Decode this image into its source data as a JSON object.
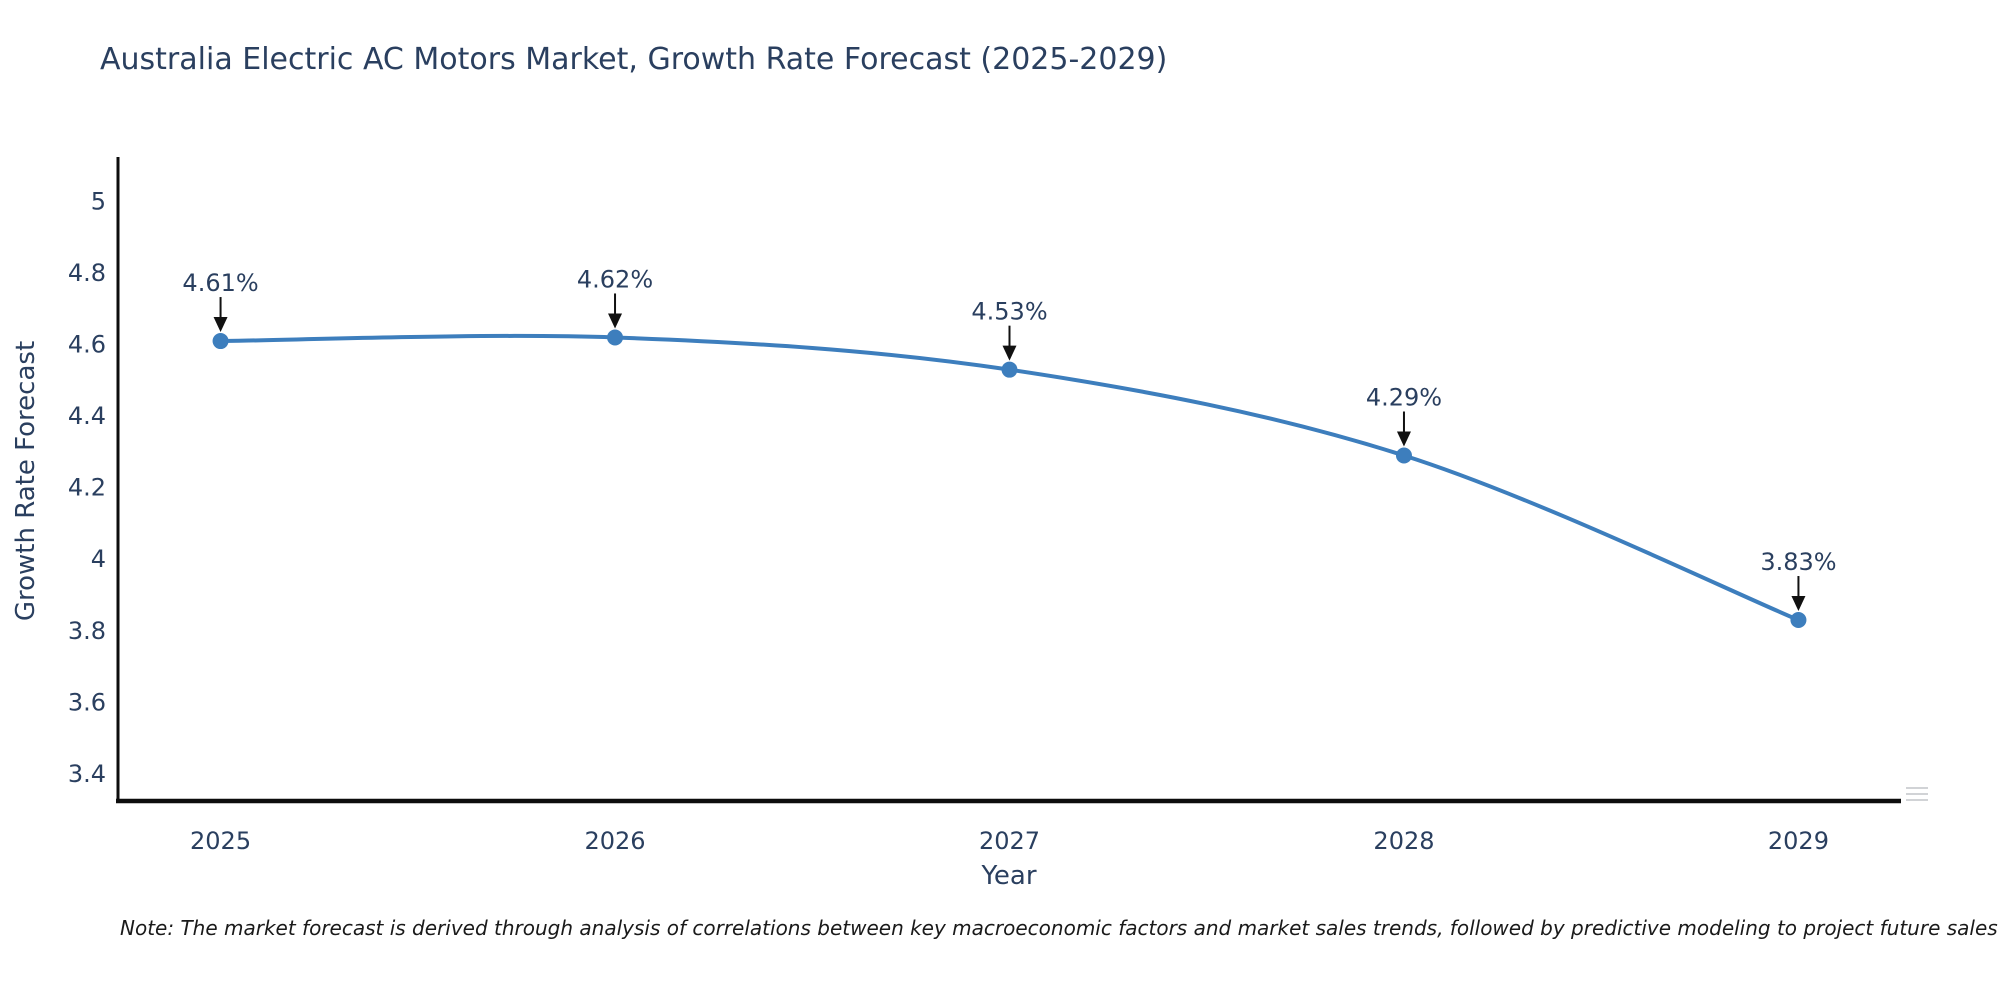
{
  "title": {
    "text": "Australia Electric AC Motors Market, Growth Rate Forecast (2025-2029)"
  },
  "note": {
    "text": "Note: The market forecast is derived through analysis of correlations between key macroeconomic factors and market sales trends, followed by predictive modeling to project future sales"
  },
  "chart_data": {
    "type": "line",
    "title": "Australia Electric AC Motors Market, Growth Rate Forecast (2025-2029)",
    "xlabel": "Year",
    "ylabel": "Growth Rate Forecast",
    "categories": [
      "2025",
      "2026",
      "2027",
      "2028",
      "2029"
    ],
    "x": [
      2025,
      2026,
      2027,
      2028,
      2029
    ],
    "series": [
      {
        "name": "Growth Rate Forecast",
        "values": [
          4.61,
          4.62,
          4.53,
          4.29,
          3.83
        ]
      }
    ],
    "data_labels": [
      "4.61%",
      "4.62%",
      "4.53%",
      "4.29%",
      "3.83%"
    ],
    "ytick_labels": [
      "5",
      "4.8",
      "4.6",
      "4.4",
      "4.2",
      "4",
      "3.8",
      "3.6",
      "3.4"
    ],
    "yticks": [
      5,
      4.8,
      4.6,
      4.4,
      4.2,
      4,
      3.8,
      3.6,
      3.4
    ],
    "xlim": [
      2024.74,
      2029.26
    ],
    "ylim": [
      3.324,
      5.119
    ],
    "grid": false,
    "curve": "spline",
    "legend": "none",
    "colors": {
      "line": "#3d7ebd",
      "marker": "#3d7ebd",
      "axis": "#0d0d0d",
      "text": "#2a3f5f",
      "annotation_arrow": "#111111"
    }
  }
}
